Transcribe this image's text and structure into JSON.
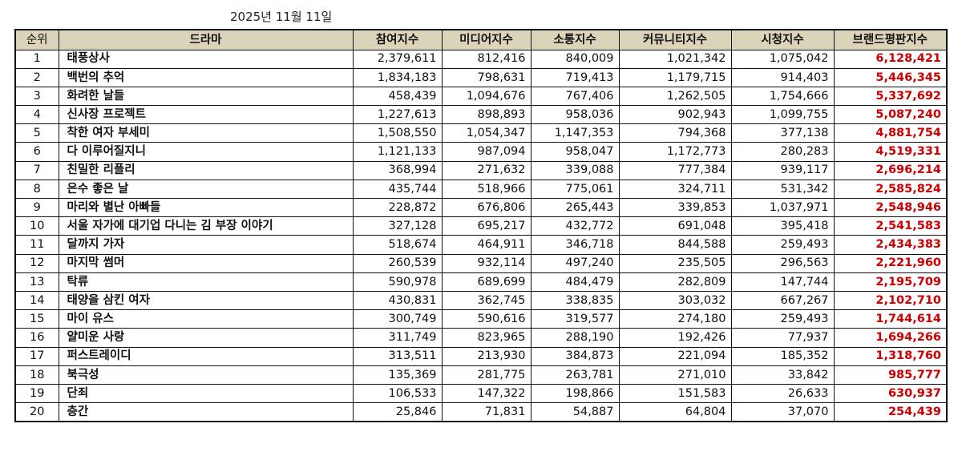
{
  "date": "2025년 11월 11일",
  "colors": {
    "header_bg": "#d9d4ba",
    "brand_value": "#cc0000"
  },
  "headers": [
    "순위",
    "드라마",
    "참여지수",
    "미디어지수",
    "소통지수",
    "커뮤니티지수",
    "시청지수",
    "브랜드평판지수"
  ],
  "rows": [
    {
      "rank": "1",
      "title": "태풍상사",
      "participation": "2,379,611",
      "media": "812,416",
      "communication": "840,009",
      "community": "1,021,342",
      "viewing": "1,075,042",
      "brand": "6,128,421"
    },
    {
      "rank": "2",
      "title": "백번의 추억",
      "participation": "1,834,183",
      "media": "798,631",
      "communication": "719,413",
      "community": "1,179,715",
      "viewing": "914,403",
      "brand": "5,446,345"
    },
    {
      "rank": "3",
      "title": "화려한 날들",
      "participation": "458,439",
      "media": "1,094,676",
      "communication": "767,406",
      "community": "1,262,505",
      "viewing": "1,754,666",
      "brand": "5,337,692"
    },
    {
      "rank": "4",
      "title": "신사장 프로젝트",
      "participation": "1,227,613",
      "media": "898,893",
      "communication": "958,036",
      "community": "902,943",
      "viewing": "1,099,755",
      "brand": "5,087,240"
    },
    {
      "rank": "5",
      "title": "착한 여자 부세미",
      "participation": "1,508,550",
      "media": "1,054,347",
      "communication": "1,147,353",
      "community": "794,368",
      "viewing": "377,138",
      "brand": "4,881,754"
    },
    {
      "rank": "6",
      "title": "다 이루어질지니",
      "participation": "1,121,133",
      "media": "987,094",
      "communication": "958,047",
      "community": "1,172,773",
      "viewing": "280,283",
      "brand": "4,519,331"
    },
    {
      "rank": "7",
      "title": "친밀한 리플리",
      "participation": "368,994",
      "media": "271,632",
      "communication": "339,088",
      "community": "777,384",
      "viewing": "939,117",
      "brand": "2,696,214"
    },
    {
      "rank": "8",
      "title": "은수 좋은 날",
      "participation": "435,744",
      "media": "518,966",
      "communication": "775,061",
      "community": "324,711",
      "viewing": "531,342",
      "brand": "2,585,824"
    },
    {
      "rank": "9",
      "title": "마리와 별난 아빠들",
      "participation": "228,872",
      "media": "676,806",
      "communication": "265,443",
      "community": "339,853",
      "viewing": "1,037,971",
      "brand": "2,548,946"
    },
    {
      "rank": "10",
      "title": "서울 자가에 대기업 다니는 김 부장 이야기",
      "participation": "327,128",
      "media": "695,217",
      "communication": "432,772",
      "community": "691,048",
      "viewing": "395,418",
      "brand": "2,541,583"
    },
    {
      "rank": "11",
      "title": "달까지 가자",
      "participation": "518,674",
      "media": "464,911",
      "communication": "346,718",
      "community": "844,588",
      "viewing": "259,493",
      "brand": "2,434,383"
    },
    {
      "rank": "12",
      "title": "마지막 썸머",
      "participation": "260,539",
      "media": "932,114",
      "communication": "497,240",
      "community": "235,505",
      "viewing": "296,563",
      "brand": "2,221,960"
    },
    {
      "rank": "13",
      "title": "탁류",
      "participation": "590,978",
      "media": "689,699",
      "communication": "484,479",
      "community": "282,809",
      "viewing": "147,744",
      "brand": "2,195,709"
    },
    {
      "rank": "14",
      "title": "태양을 삼킨 여자",
      "participation": "430,831",
      "media": "362,745",
      "communication": "338,835",
      "community": "303,032",
      "viewing": "667,267",
      "brand": "2,102,710"
    },
    {
      "rank": "15",
      "title": "마이 유스",
      "participation": "300,749",
      "media": "590,616",
      "communication": "319,577",
      "community": "274,180",
      "viewing": "259,493",
      "brand": "1,744,614"
    },
    {
      "rank": "16",
      "title": "얄미운 사랑",
      "participation": "311,749",
      "media": "823,965",
      "communication": "288,190",
      "community": "192,426",
      "viewing": "77,937",
      "brand": "1,694,266"
    },
    {
      "rank": "17",
      "title": "퍼스트레이디",
      "participation": "313,511",
      "media": "213,930",
      "communication": "384,873",
      "community": "221,094",
      "viewing": "185,352",
      "brand": "1,318,760"
    },
    {
      "rank": "18",
      "title": "북극성",
      "participation": "135,369",
      "media": "281,775",
      "communication": "263,781",
      "community": "271,010",
      "viewing": "33,842",
      "brand": "985,777"
    },
    {
      "rank": "19",
      "title": "단죄",
      "participation": "106,533",
      "media": "147,322",
      "communication": "198,866",
      "community": "151,583",
      "viewing": "26,633",
      "brand": "630,937"
    },
    {
      "rank": "20",
      "title": "층간",
      "participation": "25,846",
      "media": "71,831",
      "communication": "54,887",
      "community": "64,804",
      "viewing": "37,070",
      "brand": "254,439"
    }
  ]
}
